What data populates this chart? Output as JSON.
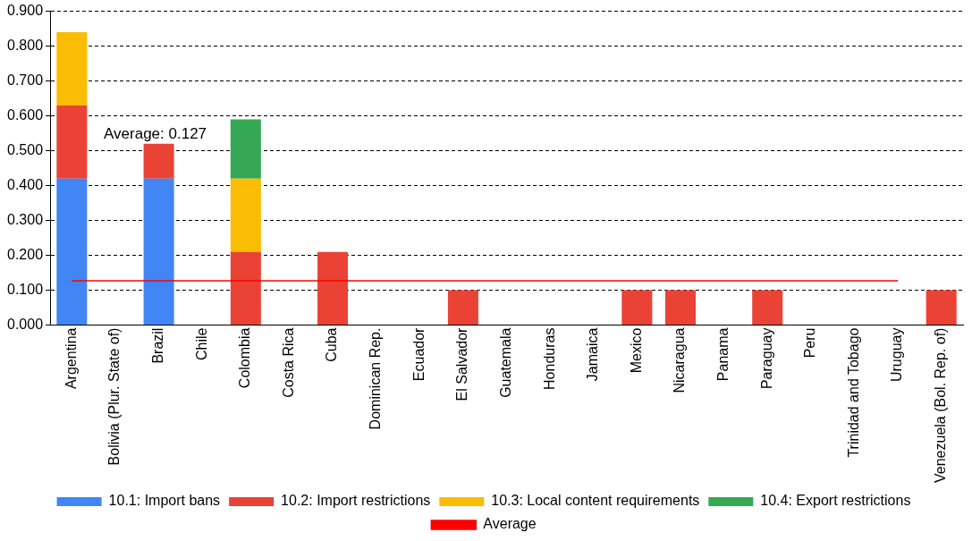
{
  "chart_data": {
    "type": "bar",
    "stacked": true,
    "categories": [
      "Argentina",
      "Bolivia (Plur. State of)",
      "Brazil",
      "Chile",
      "Colombia",
      "Costa Rica",
      "Cuba",
      "Dominican Rep.",
      "Ecuador",
      "El Salvador",
      "Guatemala",
      "Honduras",
      "Jamaica",
      "Mexico",
      "Nicaragua",
      "Panama",
      "Paraguay",
      "Peru",
      "Trinidad and Tobago",
      "Uruguay",
      "Venezuela (Bol. Rep. of)"
    ],
    "series": [
      {
        "name": "10.1: Import bans",
        "color": "#4285f4",
        "values": [
          0.42,
          0,
          0.42,
          0,
          0,
          0,
          0,
          0,
          0,
          0,
          0,
          0,
          0,
          0,
          0,
          0,
          0,
          0,
          0,
          0,
          0
        ]
      },
      {
        "name": "10.2: Import restrictions",
        "color": "#ea4335",
        "values": [
          0.21,
          0,
          0.1,
          0,
          0.21,
          0,
          0.21,
          0,
          0,
          0.1,
          0,
          0,
          0,
          0.1,
          0.1,
          0,
          0.1,
          0,
          0,
          0,
          0.1
        ]
      },
      {
        "name": "10.3: Local content requirements",
        "color": "#fbbc04",
        "values": [
          0.21,
          0,
          0,
          0,
          0.21,
          0,
          0,
          0,
          0,
          0,
          0,
          0,
          0,
          0,
          0,
          0,
          0,
          0,
          0,
          0,
          0
        ]
      },
      {
        "name": "10.4: Export restrictions",
        "color": "#34a853",
        "values": [
          0,
          0,
          0,
          0,
          0.17,
          0,
          0,
          0,
          0,
          0,
          0,
          0,
          0,
          0,
          0,
          0,
          0,
          0,
          0,
          0,
          0
        ]
      },
      {
        "name": "Average",
        "type": "line",
        "color": "#ff0000",
        "values": [
          0.127,
          0.127,
          0.127,
          0.127,
          0.127,
          0.127,
          0.127,
          0.127,
          0.127,
          0.127,
          0.127,
          0.127,
          0.127,
          0.127,
          0.127,
          0.127,
          0.127,
          0.127,
          0.127,
          0.127,
          null
        ]
      }
    ],
    "ylim": [
      0,
      0.9
    ],
    "yticks": [
      {
        "value": 0,
        "label": "0.000"
      },
      {
        "value": 0.1,
        "label": "0.100"
      },
      {
        "value": 0.2,
        "label": "0.200"
      },
      {
        "value": 0.3,
        "label": "0.300"
      },
      {
        "value": 0.4,
        "label": "0.400"
      },
      {
        "value": 0.5,
        "label": "0.500"
      },
      {
        "value": 0.6,
        "label": "0.600"
      },
      {
        "value": 0.7,
        "label": "0.700"
      },
      {
        "value": 0.8,
        "label": "0.800"
      },
      {
        "value": 0.9,
        "label": "0.900"
      }
    ],
    "grid": "y",
    "legend": "bottom",
    "marker": "none",
    "annotations": [
      "Average: 0.127"
    ]
  }
}
